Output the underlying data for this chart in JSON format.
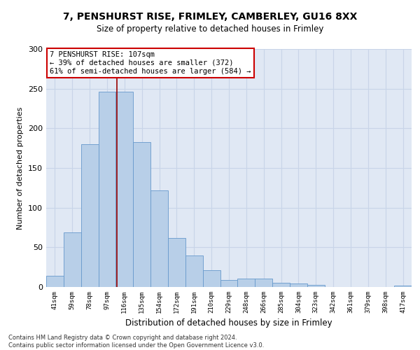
{
  "title1": "7, PENSHURST RISE, FRIMLEY, CAMBERLEY, GU16 8XX",
  "title2": "Size of property relative to detached houses in Frimley",
  "xlabel": "Distribution of detached houses by size in Frimley",
  "ylabel": "Number of detached properties",
  "categories": [
    "41sqm",
    "59sqm",
    "78sqm",
    "97sqm",
    "116sqm",
    "135sqm",
    "154sqm",
    "172sqm",
    "191sqm",
    "210sqm",
    "229sqm",
    "248sqm",
    "266sqm",
    "285sqm",
    "304sqm",
    "323sqm",
    "342sqm",
    "361sqm",
    "379sqm",
    "398sqm",
    "417sqm"
  ],
  "values": [
    14,
    69,
    180,
    246,
    246,
    183,
    122,
    62,
    40,
    21,
    9,
    11,
    11,
    5,
    4,
    3,
    0,
    0,
    0,
    0,
    2
  ],
  "bar_color": "#b8cfe8",
  "bar_edge_color": "#6699cc",
  "vline_x": 3.57,
  "vline_color": "#990000",
  "annotation_line1": "7 PENSHURST RISE: 107sqm",
  "annotation_line2": "← 39% of detached houses are smaller (372)",
  "annotation_line3": "61% of semi-detached houses are larger (584) →",
  "annotation_box_color": "white",
  "annotation_box_edge_color": "#cc0000",
  "ylim": [
    0,
    300
  ],
  "yticks": [
    0,
    50,
    100,
    150,
    200,
    250,
    300
  ],
  "grid_color": "#c8d4e8",
  "background_color": "#e0e8f4",
  "footer1": "Contains HM Land Registry data © Crown copyright and database right 2024.",
  "footer2": "Contains public sector information licensed under the Open Government Licence v3.0."
}
